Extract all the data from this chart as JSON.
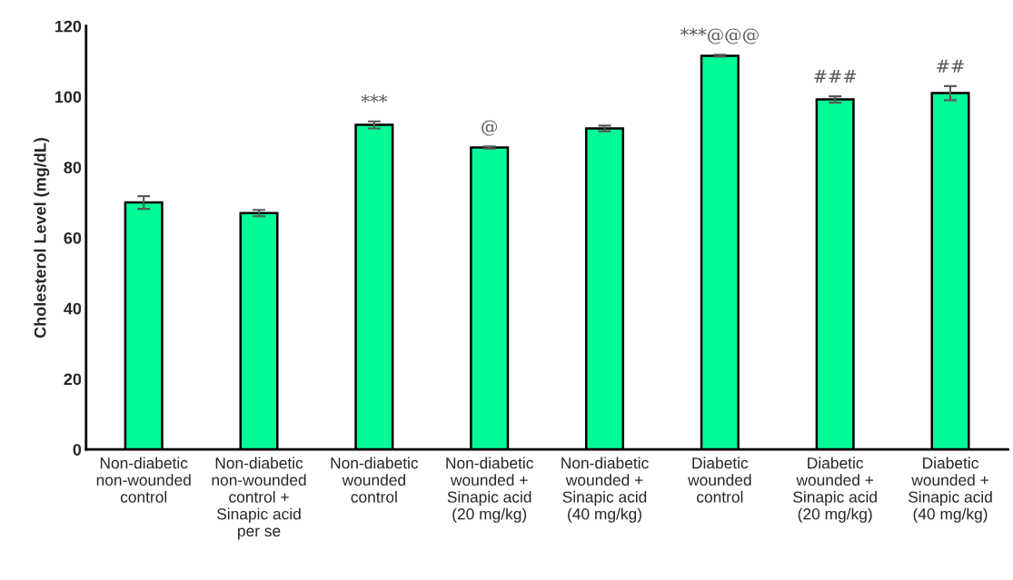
{
  "chart_data": {
    "type": "bar",
    "ylabel": "Cholesterol Level (mg/dL)",
    "categories": [
      "Non-diabetic\nnon-wounded\ncontrol",
      "Non-diabetic\nnon-wounded\ncontrol +\nSinapic acid\nper se",
      "Non-diabetic\nwounded\ncontrol",
      "Non-diabetic\nwounded +\nSinapic acid\n(20 mg/kg)",
      "Non-diabetic\nwounded +\nSinapic acid\n(40 mg/kg)",
      "Diabetic\nwounded\ncontrol",
      "Diabetic\nwounded +\nSinapic acid\n(20 mg/kg)",
      "Diabetic\nwounded +\nSinapic acid\n(40 mg/kg)"
    ],
    "values": [
      70,
      67,
      92,
      85.6,
      91,
      111.6,
      99.2,
      101
    ],
    "errors": [
      1.8,
      0.9,
      1,
      0.3,
      0.8,
      0.3,
      0.9,
      2
    ],
    "color": "#00fa96",
    "ylim": [
      0,
      120
    ],
    "yticks": [
      0,
      20,
      40,
      60,
      80,
      100,
      120
    ],
    "grid": false,
    "annotations": [
      {
        "text": "***",
        "x": "Non-diabetic\nwounded\ncontrol",
        "y": 93
      },
      {
        "text": "@",
        "x": "Non-diabetic\nwounded +\nSinapic acid\n(20 mg/kg)",
        "y": 85.9
      },
      {
        "text": "***@@@",
        "x": "Diabetic\nwounded\ncontrol",
        "y": 111.9
      },
      {
        "text": "###",
        "x": "Diabetic\nwounded +\nSinapic acid\n(20 mg/kg)",
        "y": 100.1
      },
      {
        "text": "##",
        "x": "Diabetic\nwounded +\nSinapic acid\n(40 mg/kg)",
        "y": 103
      }
    ]
  }
}
